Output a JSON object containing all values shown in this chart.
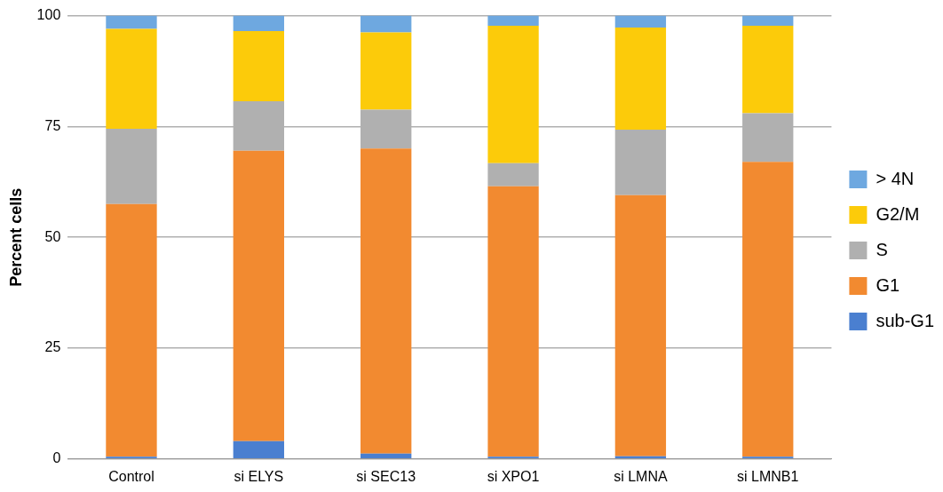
{
  "chart_data": {
    "type": "bar",
    "stacked": true,
    "ylabel": "Percent cells",
    "categories": [
      "Control",
      "si ELYS",
      "si SEC13",
      "si XPO1",
      "si LMNA",
      "si LMNB1"
    ],
    "series": [
      {
        "name": "sub-G1",
        "color": "#4a7fd0",
        "values": [
          0.5,
          4,
          1.2,
          0.5,
          0.6,
          0.5
        ]
      },
      {
        "name": "G1",
        "color": "#f28a30",
        "values": [
          57,
          65.5,
          68.8,
          61,
          58.9,
          66.5
        ]
      },
      {
        "name": "S",
        "color": "#b0b0b0",
        "values": [
          17,
          11.2,
          8.8,
          5.2,
          14.8,
          11
        ]
      },
      {
        "name": "G2/M",
        "color": "#fccb0a",
        "values": [
          22.5,
          15.8,
          17.4,
          31,
          23,
          19.7
        ]
      },
      {
        "name": "> 4N",
        "color": "#6ea8e0",
        "values": [
          3,
          3.5,
          3.8,
          2.3,
          2.7,
          2.3
        ]
      }
    ],
    "ylim": [
      0,
      100
    ],
    "yticks": [
      0,
      25,
      50,
      75,
      100
    ],
    "grid": "y",
    "legend": "right"
  }
}
